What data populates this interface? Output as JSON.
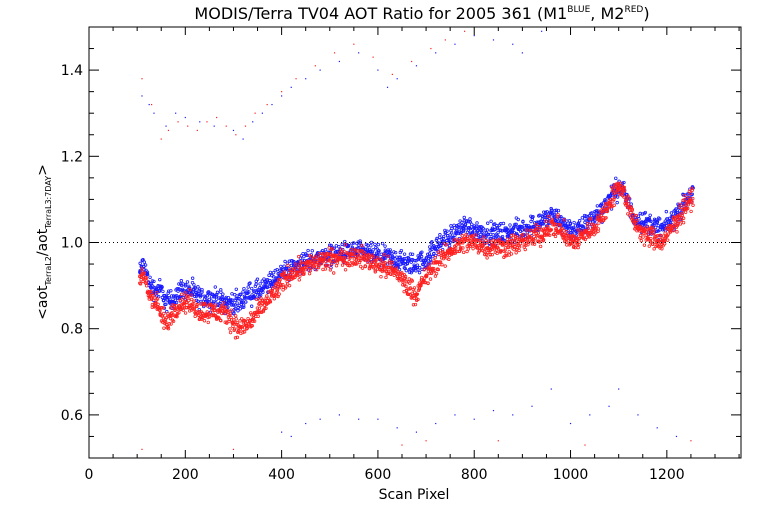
{
  "chart_data": {
    "type": "scatter",
    "title": {
      "main": "MODIS/Terra TV04 AOT Ratio for 2005 361 (M1",
      "sup1": "BLUE",
      "mid": ", M2",
      "sup2": "RED",
      "end": ")"
    },
    "xlabel": "Scan Pixel",
    "ylabel": {
      "open": "<aot",
      "sub1": "TerraL2",
      "slash": "/aot",
      "sub2": "TerraL3:7DAY",
      "close": ">"
    },
    "xlim": [
      0,
      1354
    ],
    "ylim": [
      0.5,
      1.5
    ],
    "xticks": [
      0,
      200,
      400,
      600,
      800,
      1000,
      1200
    ],
    "xtick_labels": [
      "0",
      "200",
      "400",
      "600",
      "800",
      "1000",
      "1200"
    ],
    "yticks": [
      0.6,
      0.8,
      1.0,
      1.2,
      1.4
    ],
    "ytick_labels": [
      "0.6",
      "0.8",
      "1.0",
      "1.2",
      "1.4"
    ],
    "reference_line": 1.0,
    "grid": false,
    "series": [
      {
        "color": "#1a1aff",
        "trend": [
          [
            105,
            0.93
          ],
          [
            115,
            0.95
          ],
          [
            125,
            0.9
          ],
          [
            140,
            0.89
          ],
          [
            150,
            0.89
          ],
          [
            160,
            0.86
          ],
          [
            175,
            0.87
          ],
          [
            190,
            0.89
          ],
          [
            210,
            0.89
          ],
          [
            230,
            0.87
          ],
          [
            260,
            0.87
          ],
          [
            290,
            0.86
          ],
          [
            310,
            0.86
          ],
          [
            330,
            0.88
          ],
          [
            360,
            0.89
          ],
          [
            390,
            0.92
          ],
          [
            420,
            0.94
          ],
          [
            460,
            0.96
          ],
          [
            500,
            0.97
          ],
          [
            550,
            0.98
          ],
          [
            600,
            0.97
          ],
          [
            640,
            0.96
          ],
          [
            660,
            0.95
          ],
          [
            680,
            0.95
          ],
          [
            700,
            0.96
          ],
          [
            730,
            1.0
          ],
          [
            760,
            1.02
          ],
          [
            780,
            1.04
          ],
          [
            800,
            1.03
          ],
          [
            830,
            1.02
          ],
          [
            860,
            1.02
          ],
          [
            900,
            1.03
          ],
          [
            940,
            1.05
          ],
          [
            960,
            1.06
          ],
          [
            980,
            1.05
          ],
          [
            1000,
            1.03
          ],
          [
            1020,
            1.03
          ],
          [
            1040,
            1.05
          ],
          [
            1060,
            1.07
          ],
          [
            1080,
            1.1
          ],
          [
            1100,
            1.13
          ],
          [
            1110,
            1.12
          ],
          [
            1130,
            1.06
          ],
          [
            1150,
            1.05
          ],
          [
            1170,
            1.04
          ],
          [
            1190,
            1.03
          ],
          [
            1210,
            1.05
          ],
          [
            1230,
            1.08
          ],
          [
            1255,
            1.12
          ]
        ],
        "spread": 0.015,
        "outliers": [
          [
            110,
            1.34
          ],
          [
            125,
            1.32
          ],
          [
            135,
            1.3
          ],
          [
            160,
            1.27
          ],
          [
            180,
            1.3
          ],
          [
            200,
            1.29
          ],
          [
            230,
            1.28
          ],
          [
            260,
            1.27
          ],
          [
            300,
            1.26
          ],
          [
            320,
            1.24
          ],
          [
            340,
            1.28
          ],
          [
            360,
            1.3
          ],
          [
            380,
            1.32
          ],
          [
            400,
            1.34
          ],
          [
            420,
            1.36
          ],
          [
            450,
            1.38
          ],
          [
            480,
            1.4
          ],
          [
            520,
            1.42
          ],
          [
            560,
            1.44
          ],
          [
            600,
            1.4
          ],
          [
            620,
            1.36
          ],
          [
            640,
            1.38
          ],
          [
            680,
            1.41
          ],
          [
            720,
            1.44
          ],
          [
            760,
            1.46
          ],
          [
            800,
            1.48
          ],
          [
            840,
            1.47
          ],
          [
            880,
            1.46
          ],
          [
            900,
            1.44
          ],
          [
            940,
            1.49
          ],
          [
            400,
            0.56
          ],
          [
            420,
            0.55
          ],
          [
            450,
            0.58
          ],
          [
            480,
            0.59
          ],
          [
            520,
            0.6
          ],
          [
            560,
            0.59
          ],
          [
            600,
            0.59
          ],
          [
            640,
            0.57
          ],
          [
            680,
            0.56
          ],
          [
            720,
            0.58
          ],
          [
            760,
            0.6
          ],
          [
            800,
            0.59
          ],
          [
            840,
            0.61
          ],
          [
            880,
            0.6
          ],
          [
            920,
            0.62
          ],
          [
            960,
            0.66
          ],
          [
            1000,
            0.58
          ],
          [
            1040,
            0.6
          ],
          [
            1080,
            0.62
          ],
          [
            1100,
            0.66
          ],
          [
            1140,
            0.6
          ],
          [
            1180,
            0.57
          ],
          [
            1220,
            0.55
          ]
        ]
      },
      {
        "color": "#ff2020",
        "trend": [
          [
            105,
            0.91
          ],
          [
            115,
            0.92
          ],
          [
            125,
            0.88
          ],
          [
            140,
            0.86
          ],
          [
            150,
            0.83
          ],
          [
            160,
            0.81
          ],
          [
            175,
            0.84
          ],
          [
            190,
            0.86
          ],
          [
            210,
            0.86
          ],
          [
            230,
            0.84
          ],
          [
            260,
            0.84
          ],
          [
            290,
            0.83
          ],
          [
            310,
            0.8
          ],
          [
            330,
            0.81
          ],
          [
            360,
            0.85
          ],
          [
            390,
            0.89
          ],
          [
            420,
            0.93
          ],
          [
            460,
            0.95
          ],
          [
            500,
            0.96
          ],
          [
            550,
            0.97
          ],
          [
            600,
            0.95
          ],
          [
            640,
            0.93
          ],
          [
            660,
            0.9
          ],
          [
            680,
            0.88
          ],
          [
            700,
            0.92
          ],
          [
            730,
            0.96
          ],
          [
            760,
            0.99
          ],
          [
            780,
            1.0
          ],
          [
            800,
            1.0
          ],
          [
            830,
            0.99
          ],
          [
            860,
            0.99
          ],
          [
            900,
            1.0
          ],
          [
            940,
            1.02
          ],
          [
            960,
            1.04
          ],
          [
            980,
            1.03
          ],
          [
            1000,
            1.0
          ],
          [
            1020,
            1.01
          ],
          [
            1040,
            1.03
          ],
          [
            1060,
            1.05
          ],
          [
            1080,
            1.09
          ],
          [
            1100,
            1.13
          ],
          [
            1110,
            1.12
          ],
          [
            1130,
            1.05
          ],
          [
            1150,
            1.02
          ],
          [
            1170,
            1.01
          ],
          [
            1190,
            1.0
          ],
          [
            1210,
            1.03
          ],
          [
            1230,
            1.07
          ],
          [
            1255,
            1.11
          ]
        ],
        "spread": 0.015,
        "outliers": [
          [
            110,
            1.38
          ],
          [
            130,
            1.32
          ],
          [
            150,
            1.24
          ],
          [
            165,
            1.26
          ],
          [
            185,
            1.28
          ],
          [
            205,
            1.27
          ],
          [
            225,
            1.26
          ],
          [
            245,
            1.28
          ],
          [
            265,
            1.29
          ],
          [
            285,
            1.27
          ],
          [
            305,
            1.25
          ],
          [
            325,
            1.27
          ],
          [
            345,
            1.3
          ],
          [
            370,
            1.32
          ],
          [
            400,
            1.35
          ],
          [
            430,
            1.38
          ],
          [
            470,
            1.41
          ],
          [
            510,
            1.44
          ],
          [
            550,
            1.46
          ],
          [
            590,
            1.43
          ],
          [
            630,
            1.39
          ],
          [
            670,
            1.42
          ],
          [
            710,
            1.45
          ],
          [
            740,
            1.47
          ],
          [
            780,
            1.49
          ],
          [
            110,
            0.52
          ],
          [
            300,
            0.52
          ],
          [
            650,
            0.53
          ],
          [
            700,
            0.54
          ],
          [
            850,
            0.54
          ],
          [
            1030,
            0.53
          ],
          [
            1250,
            0.54
          ]
        ]
      }
    ]
  }
}
